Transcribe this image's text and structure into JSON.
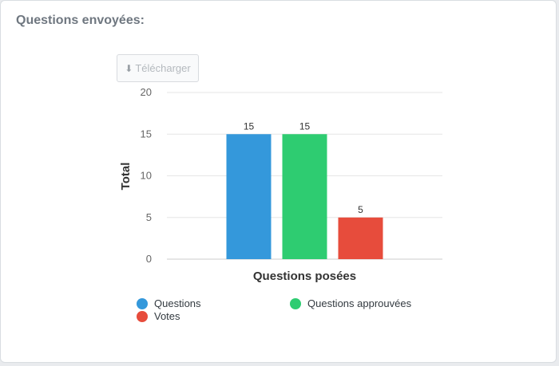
{
  "card": {
    "title": "Questions envoyées:"
  },
  "toolbar": {
    "download_icon": "download-arrow-icon",
    "download_label": "Télécharger"
  },
  "colors": {
    "questions": "#3498db",
    "approved": "#2ecc71",
    "votes": "#e74c3c",
    "grid": "#e6e6e6",
    "axis_text": "#666666"
  },
  "chart_data": {
    "type": "bar",
    "categories": [
      "Questions posées"
    ],
    "series": [
      {
        "name": "Questions",
        "values": [
          15
        ],
        "color": "#3498db"
      },
      {
        "name": "Questions approuvées",
        "values": [
          15
        ],
        "color": "#2ecc71"
      },
      {
        "name": "Votes",
        "values": [
          5
        ],
        "color": "#e74c3c"
      }
    ],
    "title": "",
    "xlabel": "Questions posées",
    "ylabel": "Total",
    "ylim": [
      0,
      20
    ],
    "yticks": [
      0,
      5,
      10,
      15,
      20
    ],
    "data_labels": true,
    "grid": true,
    "legend_position": "bottom"
  }
}
